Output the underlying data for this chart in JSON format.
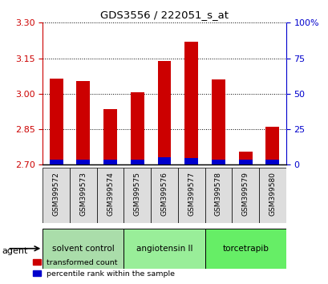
{
  "title": "GDS3556 / 222051_s_at",
  "samples": [
    "GSM399572",
    "GSM399573",
    "GSM399574",
    "GSM399575",
    "GSM399576",
    "GSM399577",
    "GSM399578",
    "GSM399579",
    "GSM399580"
  ],
  "transformed_count": [
    3.065,
    3.055,
    2.935,
    3.005,
    3.14,
    3.22,
    3.06,
    2.755,
    2.86
  ],
  "percentile_rank": [
    3.5,
    3.5,
    3.5,
    3.5,
    5.0,
    4.5,
    3.5,
    3.5,
    3.5
  ],
  "ylim_left": [
    2.7,
    3.3
  ],
  "ylim_right": [
    0,
    100
  ],
  "yticks_left": [
    2.7,
    2.85,
    3.0,
    3.15,
    3.3
  ],
  "yticks_right": [
    0,
    25,
    50,
    75,
    100
  ],
  "bar_color_red": "#cc0000",
  "bar_color_blue": "#0000cc",
  "bar_width": 0.5,
  "groups": [
    {
      "label": "solvent control",
      "indices": [
        0,
        1,
        2
      ],
      "color": "#aaddaa"
    },
    {
      "label": "angiotensin II",
      "indices": [
        3,
        4,
        5
      ],
      "color": "#99ee99"
    },
    {
      "label": "torcetrapib",
      "indices": [
        6,
        7,
        8
      ],
      "color": "#66ee66"
    }
  ],
  "agent_label": "agent",
  "legend_red": "transformed count",
  "legend_blue": "percentile rank within the sample",
  "label_bg_color": "#dddddd"
}
